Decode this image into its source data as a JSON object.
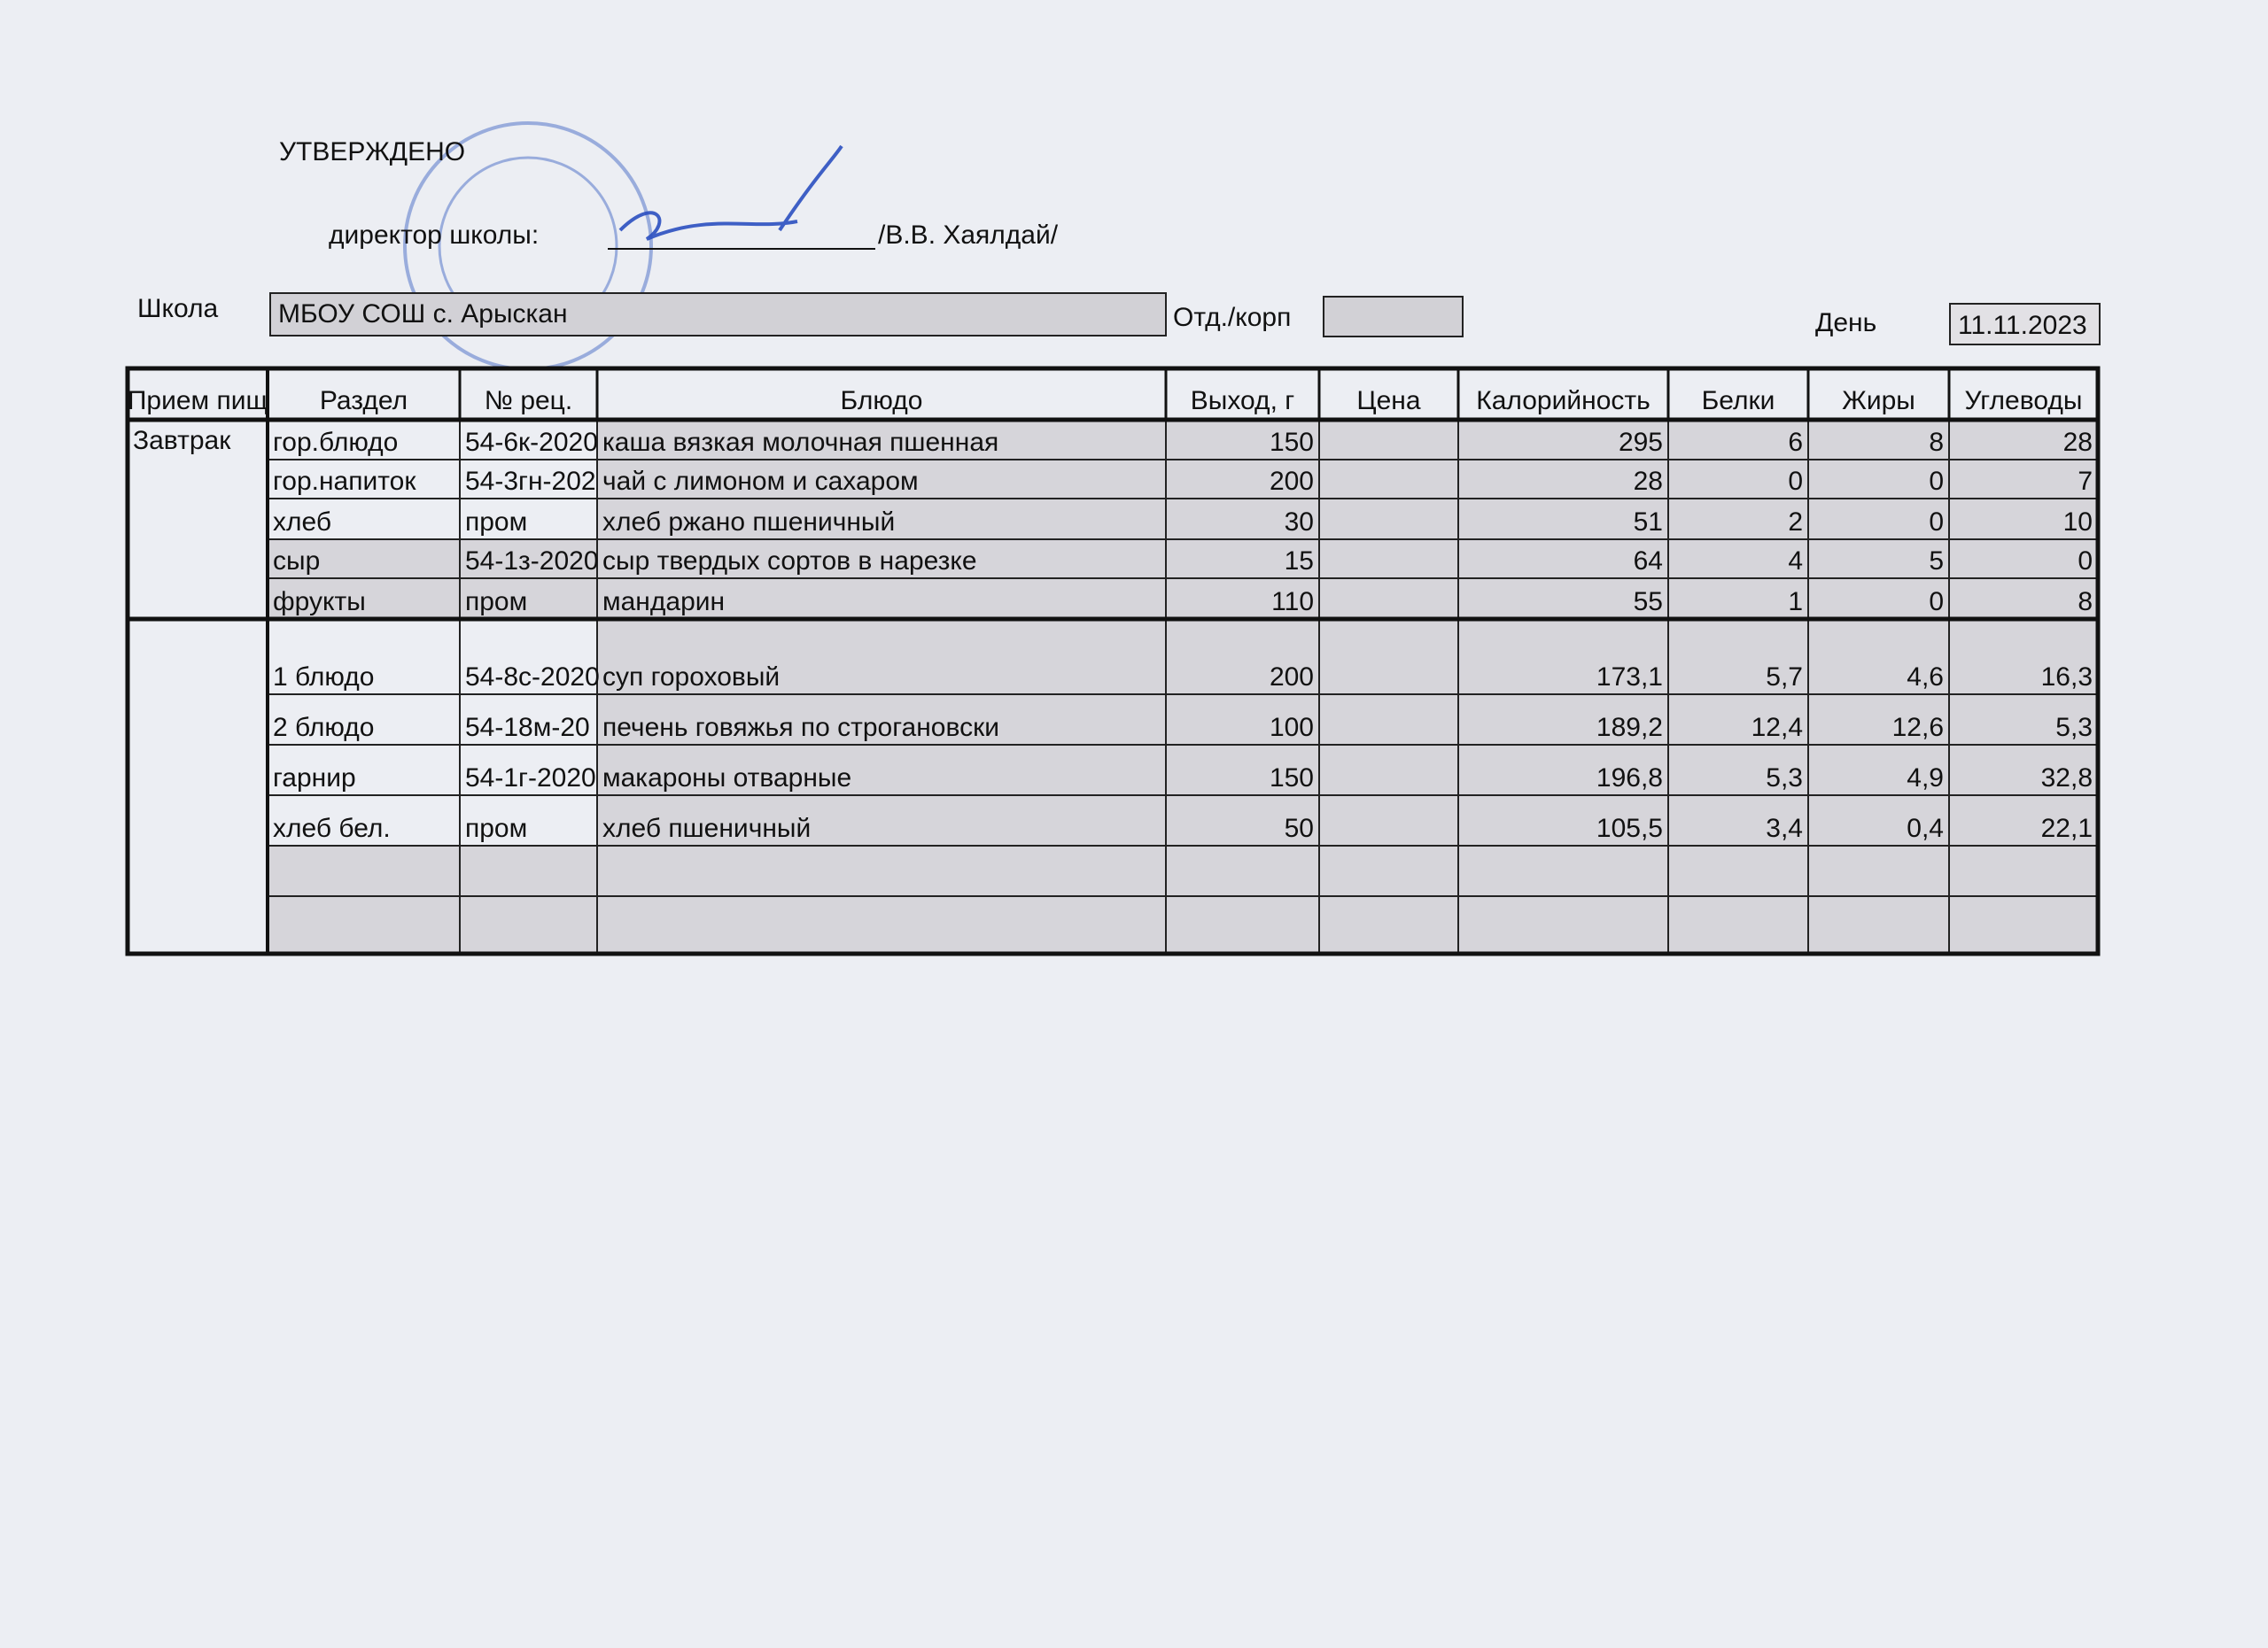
{
  "header": {
    "approved": "УТВЕРЖДЕНО",
    "director_label": "директор школы:",
    "director_name": "/В.В. Хаялдай/"
  },
  "school": {
    "label": "Школа",
    "value": "МБОУ СОШ с. Арыскан"
  },
  "department": {
    "label": "Отд./корп"
  },
  "day": {
    "label": "День",
    "value": "11.11.2023"
  },
  "table": {
    "columns": [
      "Прием пищ",
      "Раздел",
      "№ рец.",
      "Блюдо",
      "Выход, г",
      "Цена",
      "Калорийность",
      "Белки",
      "Жиры",
      "Углеводы"
    ],
    "rows": [
      [
        "Завтрак",
        "гор.блюдо",
        "54-6к-2020",
        "каша вязкая молочная пшенная",
        "150",
        null,
        "295",
        "6",
        "8",
        "28"
      ],
      [
        null,
        "гор.напиток",
        "54-3гн-202",
        "чай с лимоном и сахаром",
        "200",
        null,
        "28",
        "0",
        "0",
        "7"
      ],
      [
        null,
        "хлеб",
        "пром",
        "хлеб ржано пшеничный",
        "30",
        null,
        "51",
        "2",
        "0",
        "10"
      ],
      [
        null,
        "сыр",
        "54-1з-2020",
        "сыр твердых сортов в нарезке",
        "15",
        null,
        "64",
        "4",
        "5",
        "0"
      ],
      [
        null,
        "фрукты",
        "пром",
        "мандарин",
        "110",
        null,
        "55",
        "1",
        "0",
        "8"
      ],
      [
        null,
        "1 блюдо",
        "54-8с-2020",
        "суп гороховый",
        "200",
        null,
        "173,1",
        "5,7",
        "4,6",
        "16,3"
      ],
      [
        null,
        "2 блюдо",
        "54-18м-20",
        "печень говяжья по строгановски",
        "100",
        null,
        "189,2",
        "12,4",
        "12,6",
        "5,3"
      ],
      [
        null,
        "гарнир",
        "54-1г-2020",
        "макароны отварные",
        "150",
        null,
        "196,8",
        "5,3",
        "4,9",
        "32,8"
      ],
      [
        null,
        "хлеб бел.",
        "пром",
        "хлеб пшеничный",
        "50",
        null,
        "105,5",
        "3,4",
        "0,4",
        "22,1"
      ]
    ]
  }
}
